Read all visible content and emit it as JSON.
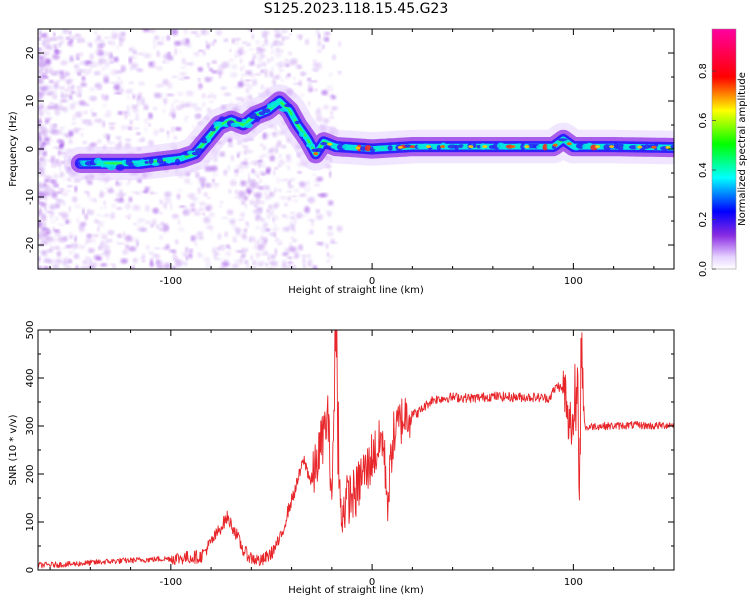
{
  "title": "S125.2023.118.15.45.G23",
  "chart_data": [
    {
      "type": "heatmap",
      "title": "S125.2023.118.15.45.G23",
      "xlabel": "Height of straight line (km)",
      "ylabel": "Frequency (Hz)",
      "xlim": [
        -166,
        150
      ],
      "ylim": [
        -25,
        25
      ],
      "xticks": [
        -100,
        0,
        100
      ],
      "yticks": [
        -20,
        -10,
        0,
        10,
        20
      ],
      "colorbar": {
        "label": "Normalized spectral amplitude",
        "ticks": [
          0.0,
          0.2,
          0.4,
          0.6,
          0.8
        ],
        "range": [
          0,
          0.97
        ]
      },
      "ridge": {
        "x": [
          -145,
          -135,
          -125,
          -115,
          -105,
          -95,
          -88,
          -82,
          -76,
          -70,
          -64,
          -58,
          -52,
          -46,
          -41,
          -37,
          -32,
          -28,
          -24,
          -18,
          -10,
          0,
          20,
          50,
          90,
          95,
          100,
          120,
          150
        ],
        "y": [
          -3,
          -3,
          -3,
          -3,
          -2.5,
          -2,
          -1,
          2,
          5,
          6,
          5,
          7,
          8,
          10,
          8,
          5,
          2,
          -1,
          1.5,
          0.5,
          0.3,
          0,
          0.5,
          0.5,
          0.5,
          2,
          0.5,
          0.5,
          0.3
        ]
      }
    },
    {
      "type": "line",
      "xlabel": "Height of straight line (km)",
      "ylabel": "SNR (10 * v/v)",
      "xlim": [
        -166,
        150
      ],
      "ylim": [
        0,
        500
      ],
      "xticks": [
        -100,
        0,
        100
      ],
      "yticks": [
        0,
        100,
        200,
        300,
        400,
        500
      ],
      "series": [
        {
          "color": "#e8262a",
          "x": [
            -166,
            -150,
            -130,
            -110,
            -95,
            -85,
            -78,
            -72,
            -68,
            -64,
            -60,
            -55,
            -50,
            -45,
            -42,
            -38,
            -34,
            -30,
            -26,
            -22,
            -20,
            -18,
            -17,
            -15,
            -12,
            -8,
            -5,
            -2,
            0,
            3,
            5,
            8,
            10,
            14,
            18,
            22,
            26,
            30,
            40,
            50,
            60,
            70,
            80,
            88,
            92,
            96,
            97,
            100,
            101,
            102,
            103,
            104,
            106,
            110,
            120,
            130,
            140,
            150
          ],
          "y": [
            10,
            12,
            18,
            22,
            25,
            28,
            70,
            110,
            80,
            40,
            25,
            18,
            35,
            70,
            120,
            170,
            230,
            180,
            250,
            320,
            160,
            500,
            180,
            120,
            150,
            160,
            200,
            210,
            240,
            250,
            280,
            140,
            270,
            310,
            330,
            325,
            340,
            355,
            360,
            358,
            362,
            360,
            360,
            358,
            385,
            370,
            300,
            310,
            330,
            420,
            130,
            460,
            295,
            300,
            300,
            302,
            300,
            303
          ]
        }
      ]
    }
  ]
}
